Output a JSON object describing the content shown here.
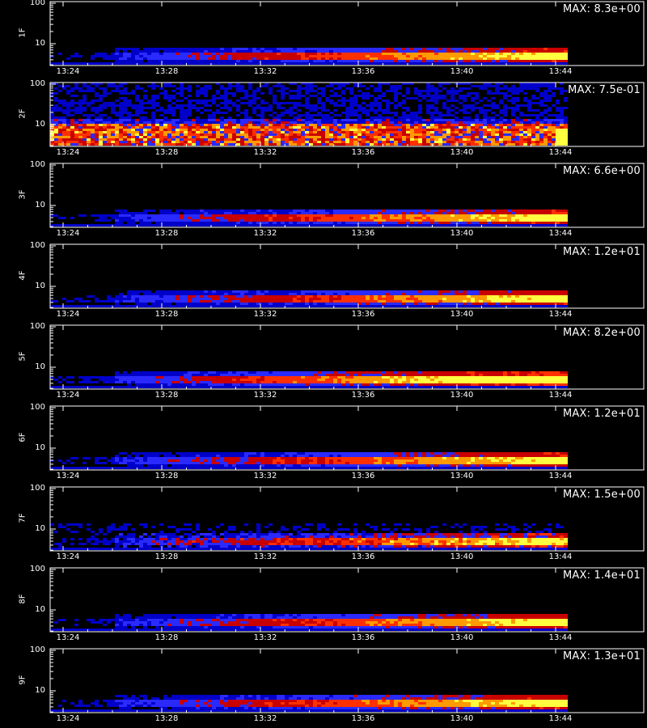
{
  "chart_data": {
    "type": "heatmap",
    "x_axis": {
      "tick_labels": [
        "13:24",
        "13:28",
        "13:32",
        "13:36",
        "13:40",
        "13:44"
      ]
    },
    "y_axis": {
      "scale": "log",
      "tick_labels": [
        "100",
        "10"
      ]
    },
    "colormap": [
      "#000000",
      "#0000c8",
      "#2a2aff",
      "#c80000",
      "#ff3000",
      "#ff9a00",
      "#ffff40",
      "#ffffff"
    ],
    "grid": false,
    "panels": [
      {
        "label": "1F",
        "max_label": "MAX: 8.3e+00",
        "profile": "ramp"
      },
      {
        "label": "2F",
        "max_label": "MAX: 7.5e-01",
        "profile": "noisy"
      },
      {
        "label": "3F",
        "max_label": "MAX: 6.6e+00",
        "profile": "ramp"
      },
      {
        "label": "4F",
        "max_label": "MAX: 1.2e+01",
        "profile": "ramp"
      },
      {
        "label": "5F",
        "max_label": "MAX: 8.2e+00",
        "profile": "ramp_strong"
      },
      {
        "label": "6F",
        "max_label": "MAX: 1.2e+01",
        "profile": "ramp"
      },
      {
        "label": "7F",
        "max_label": "MAX: 1.5e+00",
        "profile": "ramp_noisy"
      },
      {
        "label": "8F",
        "max_label": "MAX: 1.4e+01",
        "profile": "ramp"
      },
      {
        "label": "9F",
        "max_label": "MAX: 1.3e+01",
        "profile": "ramp"
      }
    ]
  }
}
